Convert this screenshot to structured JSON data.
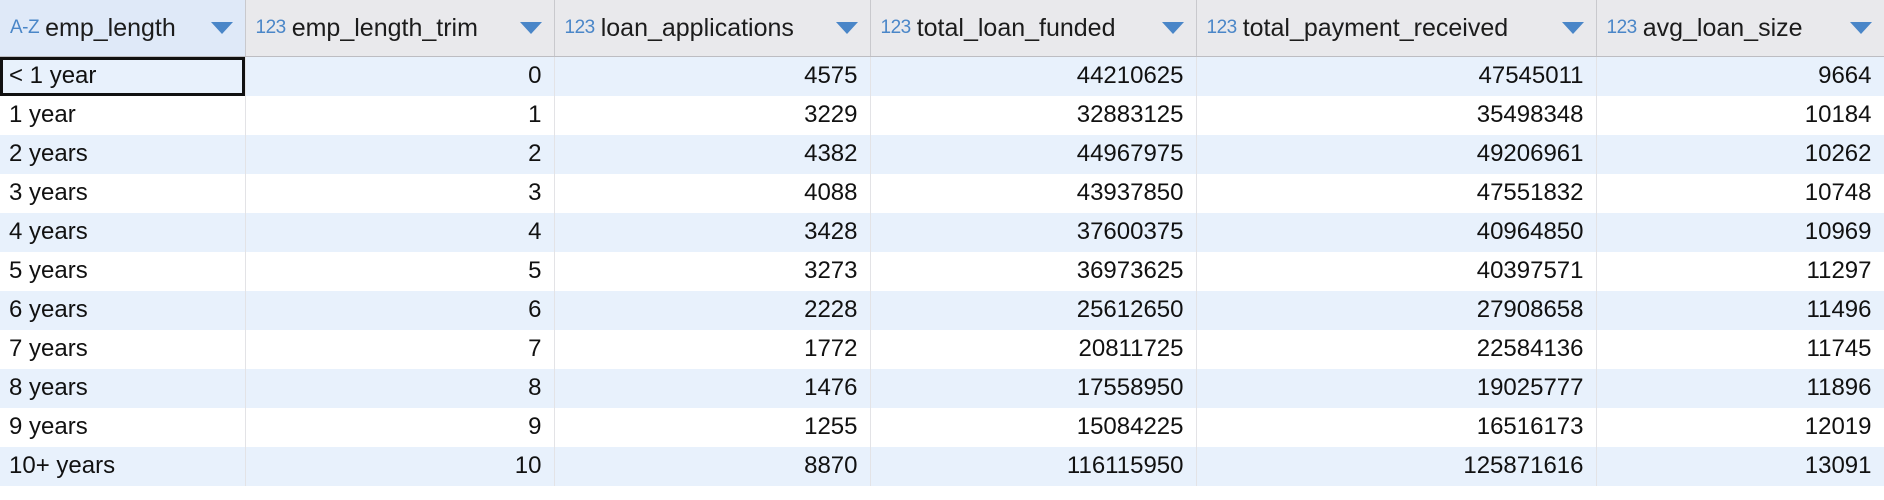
{
  "columns": [
    {
      "type_icon": "A-Z",
      "name": "emp_length"
    },
    {
      "type_icon": "123",
      "name": "emp_length_trim"
    },
    {
      "type_icon": "123",
      "name": "loan_applications"
    },
    {
      "type_icon": "123",
      "name": "total_loan_funded"
    },
    {
      "type_icon": "123",
      "name": "total_payment_received"
    },
    {
      "type_icon": "123",
      "name": "avg_loan_size"
    }
  ],
  "rows": [
    [
      "< 1 year",
      "0",
      "4575",
      "44210625",
      "47545011",
      "9664"
    ],
    [
      "1 year",
      "1",
      "3229",
      "32883125",
      "35498348",
      "10184"
    ],
    [
      "2 years",
      "2",
      "4382",
      "44967975",
      "49206961",
      "10262"
    ],
    [
      "3 years",
      "3",
      "4088",
      "43937850",
      "47551832",
      "10748"
    ],
    [
      "4 years",
      "4",
      "3428",
      "37600375",
      "40964850",
      "10969"
    ],
    [
      "5 years",
      "5",
      "3273",
      "36973625",
      "40397571",
      "11297"
    ],
    [
      "6 years",
      "6",
      "2228",
      "25612650",
      "27908658",
      "11496"
    ],
    [
      "7 years",
      "7",
      "1772",
      "20811725",
      "22584136",
      "11745"
    ],
    [
      "8 years",
      "8",
      "1476",
      "17558950",
      "19025777",
      "11896"
    ],
    [
      "9 years",
      "9",
      "1255",
      "15084225",
      "16516173",
      "12019"
    ],
    [
      "10+ years",
      "10",
      "8870",
      "116115950",
      "125871616",
      "13091"
    ]
  ],
  "icons": {
    "sort": "chevron-down-icon"
  },
  "colors": {
    "accent": "#4a86c8",
    "row_alt": "#e8f1fc",
    "header_bg": "#e9e9ec"
  }
}
